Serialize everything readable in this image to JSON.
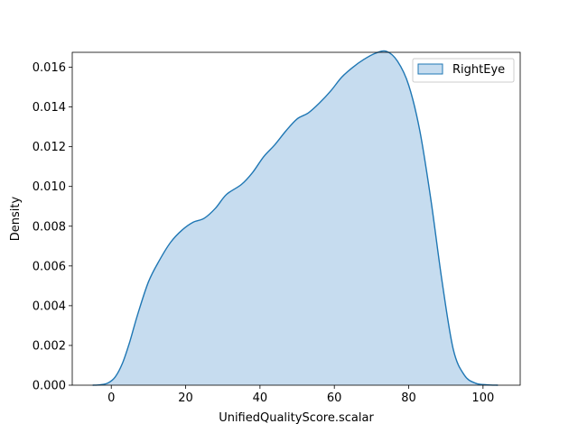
{
  "chart_data": {
    "type": "area",
    "title": "",
    "xlabel": "UnifiedQualityScore.scalar",
    "ylabel": "Density",
    "xlim": [
      -10.5,
      110
    ],
    "ylim": [
      0,
      0.01675
    ],
    "xticks": [
      0,
      20,
      40,
      60,
      80,
      100
    ],
    "yticks": [
      0.0,
      0.002,
      0.004,
      0.006,
      0.008,
      0.01,
      0.012,
      0.014,
      0.016
    ],
    "ytick_labels": [
      "0.000",
      "0.002",
      "0.004",
      "0.006",
      "0.008",
      "0.010",
      "0.012",
      "0.014",
      "0.016"
    ],
    "grid": false,
    "legend_position": "top-right",
    "colors": {
      "line": "#1f77b4",
      "fill": "#c6dcef"
    },
    "series": [
      {
        "name": "RightEye",
        "x": [
          -5,
          -3,
          -1,
          1,
          3,
          5,
          7,
          10,
          13,
          16,
          19,
          22,
          25,
          28,
          31,
          35,
          38,
          41,
          44,
          47,
          50,
          53,
          56,
          59,
          62,
          65,
          68,
          71,
          74,
          77,
          80,
          83,
          86,
          89,
          92,
          95,
          98,
          101,
          104
        ],
        "y": [
          0.0,
          2e-05,
          0.0001,
          0.0004,
          0.0011,
          0.0022,
          0.0035,
          0.0052,
          0.0063,
          0.0072,
          0.0078,
          0.0082,
          0.0084,
          0.0089,
          0.0096,
          0.0101,
          0.0107,
          0.0115,
          0.0121,
          0.0128,
          0.0134,
          0.0137,
          0.0142,
          0.0148,
          0.0155,
          0.016,
          0.0164,
          0.0167,
          0.0168,
          0.0163,
          0.0151,
          0.0128,
          0.0093,
          0.0052,
          0.0018,
          0.0005,
          0.0001,
          2e-05,
          0.0
        ]
      }
    ]
  }
}
